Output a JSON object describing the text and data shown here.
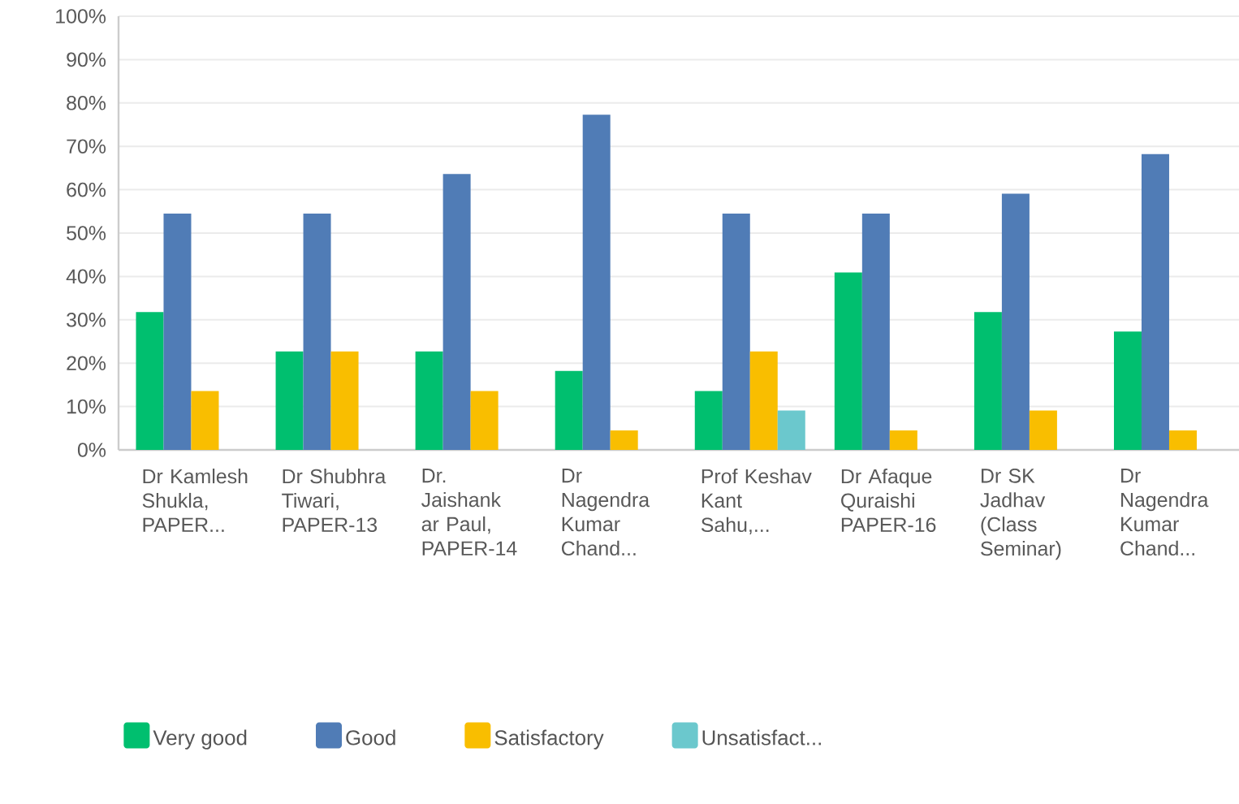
{
  "chart_data": {
    "type": "bar",
    "categories": [
      "Dr Kamlesh Shukla, PAPER...",
      "Dr Shubhra Tiwari, PAPER-13",
      "Dr. Jaishank ar Paul, PAPER-14",
      "Dr Nagendra Kumar Chand...",
      "Prof Keshav Kant Sahu,...",
      "Dr Afaque Quraishi PAPER-16",
      "Dr SK Jadhav (Class Seminar)",
      "Dr Nagendra Kumar Chand..."
    ],
    "series": [
      {
        "name": "Very good",
        "color": "#00bf6f",
        "values": [
          31.8,
          22.7,
          22.7,
          18.2,
          13.6,
          40.9,
          31.8,
          27.3
        ]
      },
      {
        "name": "Good",
        "color": "#507cb6",
        "values": [
          54.5,
          54.5,
          63.6,
          77.3,
          54.5,
          54.5,
          59.1,
          68.2
        ]
      },
      {
        "name": "Satisfactory",
        "color": "#f9be00",
        "values": [
          13.6,
          22.7,
          13.6,
          4.5,
          22.7,
          4.5,
          9.1,
          4.5
        ]
      },
      {
        "name": "Unsatisfact...",
        "color": "#6bc8cd",
        "values": [
          null,
          null,
          null,
          null,
          9.1,
          null,
          null,
          null
        ]
      }
    ],
    "ylim": [
      0,
      100
    ],
    "yticks": [
      {
        "value": 0,
        "label": "0%"
      },
      {
        "value": 10,
        "label": "10%"
      },
      {
        "value": 20,
        "label": "20%"
      },
      {
        "value": 30,
        "label": "30%"
      },
      {
        "value": 40,
        "label": "40%"
      },
      {
        "value": 50,
        "label": "50%"
      },
      {
        "value": 60,
        "label": "60%"
      },
      {
        "value": 70,
        "label": "70%"
      },
      {
        "value": 80,
        "label": "80%"
      },
      {
        "value": 90,
        "label": "90%"
      },
      {
        "value": 100,
        "label": "100%"
      }
    ],
    "grid": "y",
    "legend": "bottom"
  }
}
